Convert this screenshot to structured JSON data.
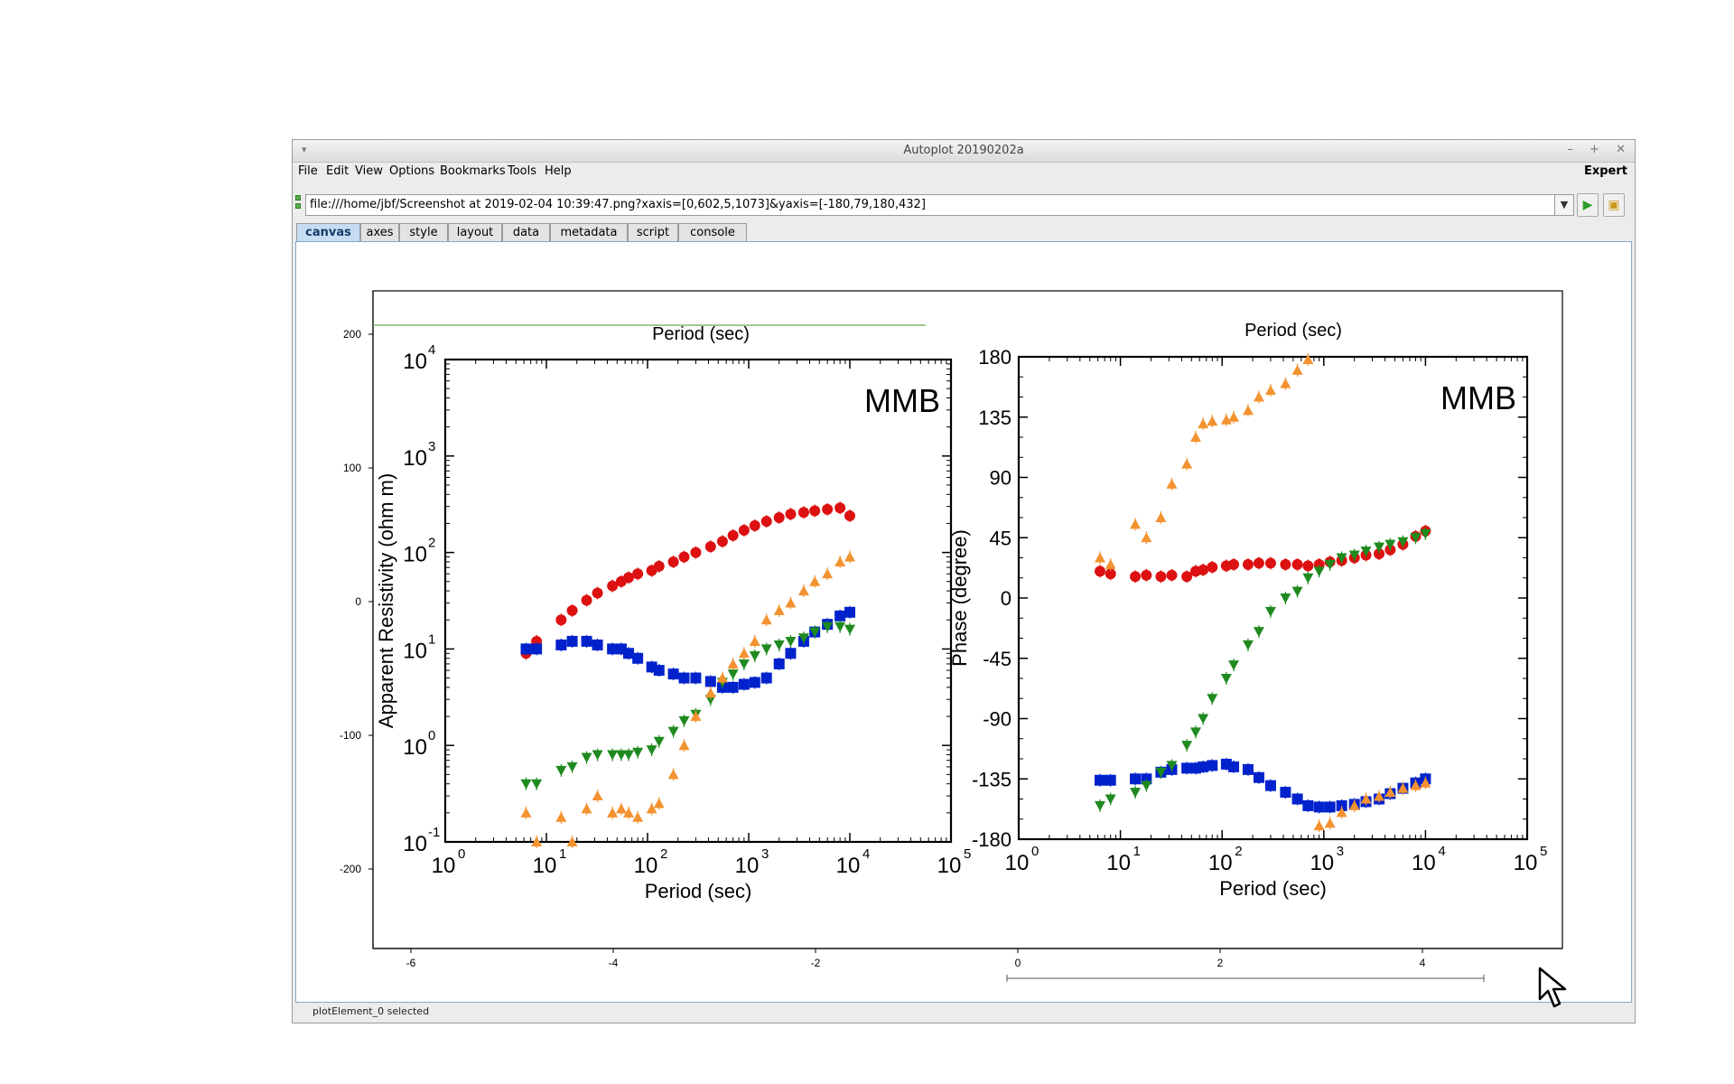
{
  "window": {
    "title": "Autoplot 20190202a"
  },
  "menu": {
    "items": [
      "File",
      "Edit",
      "View",
      "Options",
      "Bookmarks",
      "Tools",
      "Help"
    ],
    "expert_label": "Expert"
  },
  "url_bar": {
    "value": "file:///home/jbf/Screenshot at 2019-02-04 10:39:47.png?xaxis=[0,602,5,1073]&yaxis=[-180,79,180,432]"
  },
  "tabs": [
    "canvas",
    "axes",
    "style",
    "layout",
    "data",
    "metadata",
    "script",
    "console"
  ],
  "active_tab": "canvas",
  "status": "plotElement_0 selected",
  "plot": {
    "ytick_labels": [
      "200",
      "100",
      "0",
      "-100",
      "-200"
    ],
    "xtick_labels": [
      "-6",
      "-4",
      "-2",
      "0",
      "2",
      "4"
    ]
  },
  "image": {
    "station_label": "MMB",
    "top_partial_label": "Period (sec)",
    "left": {
      "xlabel": "Period (sec)",
      "ylabel": "Apparent Resistivity (ohm m)",
      "xtick_exponents": [
        "0",
        "1",
        "2",
        "3",
        "4",
        "5"
      ],
      "ytick_exponents": [
        "-1",
        "0",
        "1",
        "2",
        "3",
        "4"
      ],
      "tick_base": "10"
    },
    "right": {
      "xlabel": "Period (sec)",
      "ylabel": "Phase (degree)",
      "xtick_exponents": [
        "0",
        "1",
        "2",
        "3",
        "4",
        "5"
      ],
      "ytick_labels": [
        "180",
        "135",
        "90",
        "45",
        "0",
        "-45",
        "-90",
        "-135",
        "-180"
      ],
      "tick_base": "10"
    }
  },
  "chart_data": [
    {
      "type": "scatter",
      "title": "",
      "xlabel": "Period (sec)",
      "ylabel": "Apparent Resistivity (ohm m)",
      "xscale": "log",
      "yscale": "log",
      "xlim": [
        1,
        100000
      ],
      "ylim": [
        0.1,
        10000
      ],
      "series": [
        {
          "color": "#dd1111",
          "marker": "circle",
          "x": [
            6.3,
            8,
            14,
            18,
            25,
            32,
            45,
            55,
            65,
            80,
            110,
            130,
            180,
            230,
            300,
            420,
            550,
            700,
            900,
            1150,
            1500,
            2000,
            2600,
            3500,
            4500,
            6000,
            8000,
            10000
          ],
          "y": [
            9,
            12,
            20,
            25,
            32,
            38,
            45,
            50,
            55,
            60,
            65,
            72,
            80,
            90,
            100,
            115,
            130,
            150,
            170,
            190,
            210,
            230,
            250,
            260,
            270,
            280,
            290,
            240
          ]
        },
        {
          "color": "#0022cc",
          "marker": "square",
          "x": [
            6.3,
            8,
            14,
            18,
            25,
            32,
            45,
            55,
            65,
            80,
            110,
            130,
            180,
            230,
            300,
            420,
            550,
            700,
            900,
            1150,
            1500,
            2000,
            2600,
            3500,
            4500,
            6000,
            8000,
            10000
          ],
          "y": [
            10,
            10,
            11,
            12,
            12,
            11,
            10,
            10,
            9,
            8,
            6.5,
            6,
            5.5,
            5,
            5,
            4.6,
            4,
            4,
            4.3,
            4.5,
            5,
            7,
            9,
            12,
            15,
            18,
            22,
            24
          ]
        },
        {
          "color": "#1f8a1f",
          "marker": "triangle-down",
          "x": [
            6.3,
            8,
            14,
            18,
            25,
            32,
            45,
            55,
            65,
            80,
            110,
            130,
            180,
            230,
            300,
            420,
            550,
            700,
            900,
            1150,
            1500,
            2000,
            2600,
            3500,
            4500,
            6000,
            8000,
            10000
          ],
          "y": [
            0.4,
            0.4,
            0.55,
            0.6,
            0.75,
            0.8,
            0.8,
            0.8,
            0.8,
            0.85,
            0.9,
            1.1,
            1.4,
            1.8,
            2.1,
            3,
            4.5,
            5.5,
            7,
            8.5,
            10,
            11,
            12,
            13,
            15,
            17,
            17,
            16
          ]
        },
        {
          "color": "#f39230",
          "marker": "triangle-up",
          "x": [
            6.3,
            8,
            14,
            18,
            25,
            32,
            45,
            55,
            65,
            80,
            110,
            130,
            180,
            230,
            300,
            420,
            550,
            700,
            900,
            1150,
            1500,
            2000,
            2600,
            3500,
            4500,
            6000,
            8000,
            10000
          ],
          "y": [
            0.2,
            0.1,
            0.18,
            0.1,
            0.22,
            0.3,
            0.2,
            0.22,
            0.2,
            0.18,
            0.22,
            0.25,
            0.5,
            1,
            2,
            3.5,
            5,
            7,
            9,
            12,
            20,
            25,
            30,
            40,
            50,
            60,
            80,
            90
          ]
        }
      ]
    },
    {
      "type": "scatter",
      "title": "",
      "xlabel": "Period (sec)",
      "ylabel": "Phase (degree)",
      "xscale": "log",
      "xlim": [
        1,
        100000
      ],
      "ylim": [
        -180,
        180
      ],
      "series": [
        {
          "color": "#dd1111",
          "marker": "circle",
          "x": [
            6.3,
            8,
            14,
            18,
            25,
            32,
            45,
            55,
            65,
            80,
            110,
            130,
            180,
            230,
            300,
            420,
            550,
            700,
            900,
            1150,
            1500,
            2000,
            2600,
            3500,
            4500,
            6000,
            8000,
            10000
          ],
          "y": [
            20,
            18,
            16,
            17,
            16,
            17,
            16,
            20,
            21,
            23,
            24,
            25,
            25,
            26,
            26,
            25,
            25,
            24,
            25,
            27,
            28,
            30,
            32,
            33,
            36,
            40,
            46,
            50
          ]
        },
        {
          "color": "#0022cc",
          "marker": "square",
          "x": [
            6.3,
            8,
            14,
            18,
            25,
            32,
            45,
            55,
            65,
            80,
            110,
            130,
            180,
            230,
            300,
            420,
            550,
            700,
            900,
            1150,
            1500,
            2000,
            2600,
            3500,
            4500,
            6000,
            8000,
            10000
          ],
          "y": [
            -136,
            -136,
            -135,
            -135,
            -130,
            -128,
            -127,
            -127,
            -126,
            -125,
            -124,
            -126,
            -128,
            -134,
            -140,
            -145,
            -150,
            -155,
            -156,
            -156,
            -155,
            -154,
            -152,
            -150,
            -146,
            -142,
            -138,
            -135
          ]
        },
        {
          "color": "#1f8a1f",
          "marker": "triangle-down",
          "x": [
            6.3,
            8,
            14,
            18,
            25,
            32,
            45,
            55,
            65,
            80,
            110,
            130,
            180,
            230,
            300,
            420,
            550,
            700,
            900,
            1150,
            1500,
            2000,
            2600,
            3500,
            4500,
            6000,
            8000,
            10000
          ],
          "y": [
            -155,
            -150,
            -145,
            -140,
            -130,
            -125,
            -110,
            -100,
            -90,
            -75,
            -60,
            -50,
            -35,
            -25,
            -10,
            0,
            5,
            15,
            20,
            25,
            30,
            32,
            35,
            38,
            40,
            42,
            45,
            48
          ]
        },
        {
          "color": "#f39230",
          "marker": "triangle-up",
          "x": [
            6.3,
            8,
            14,
            18,
            25,
            32,
            45,
            55,
            65,
            80,
            110,
            130,
            180,
            230,
            300,
            420,
            550,
            700,
            900,
            1150,
            1500,
            2000,
            2600,
            3500,
            4500,
            6000,
            8000,
            10000
          ],
          "y": [
            30,
            25,
            55,
            45,
            60,
            85,
            100,
            120,
            130,
            132,
            133,
            135,
            140,
            150,
            155,
            160,
            170,
            178,
            -170,
            -168,
            -160,
            -155,
            -150,
            -148,
            -145,
            -142,
            -140,
            -138
          ]
        }
      ]
    }
  ]
}
